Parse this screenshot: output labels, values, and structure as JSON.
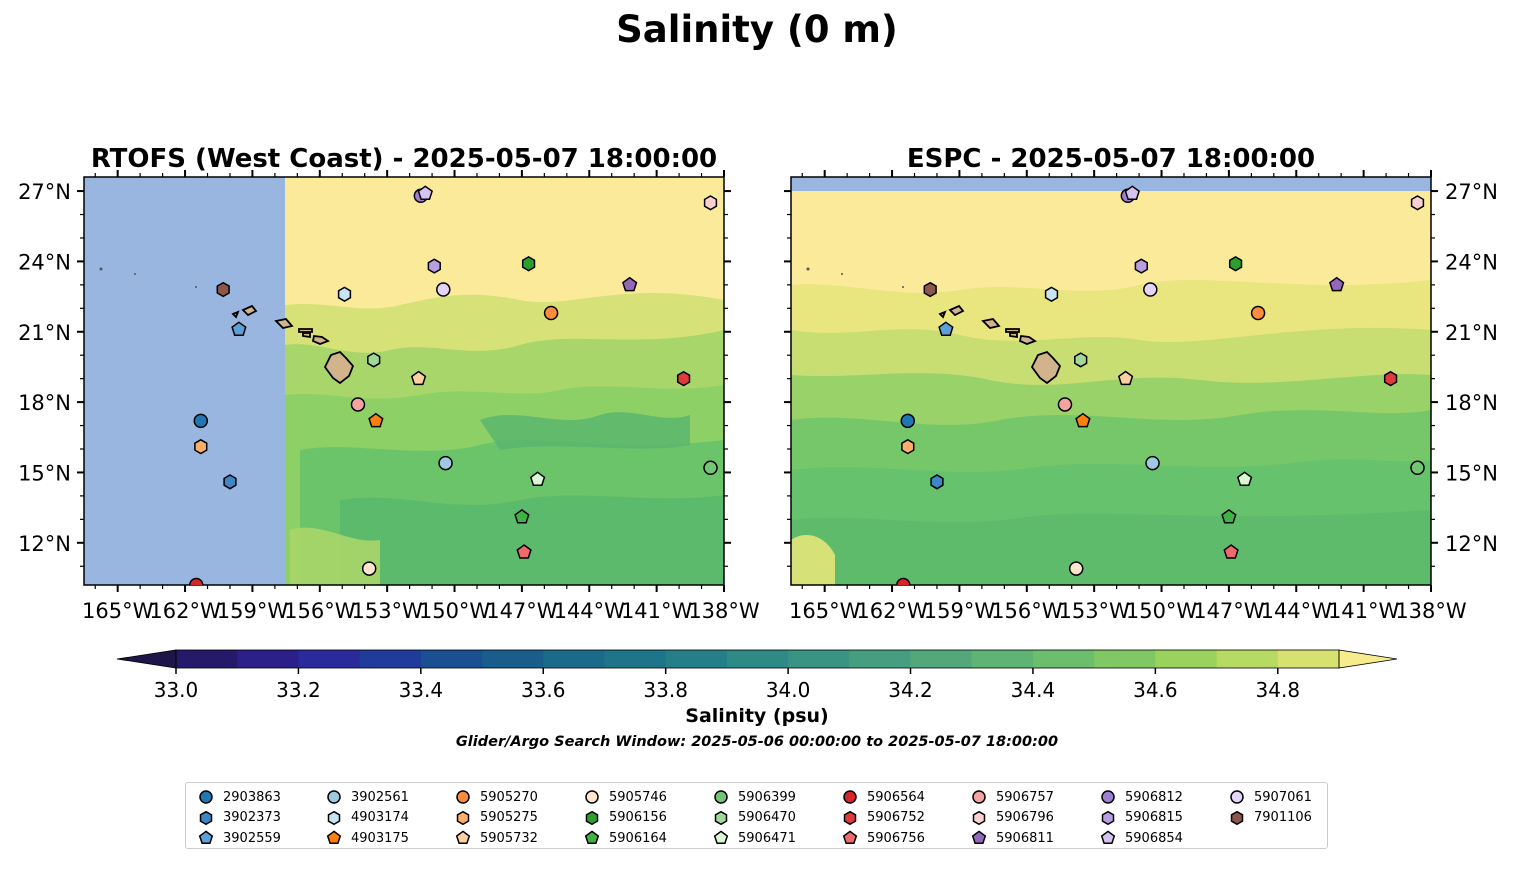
{
  "figure": {
    "suptitle": "Salinity (0 m)",
    "colorbar_label": "Salinity (psu)",
    "search_window": "Glider/Argo Search Window: 2025-05-06 00:00:00 to 2025-05-07 18:00:00",
    "colorbar_ticks": [
      "33.0",
      "33.2",
      "33.4",
      "33.6",
      "33.8",
      "34.0",
      "34.2",
      "34.4",
      "34.6",
      "34.8"
    ],
    "colorbar_range": [
      33.0,
      34.9
    ],
    "colorbar_step": 0.1,
    "colors": {
      "ocean_nodata": "#98b6e0",
      "land": "#d2b48c",
      "high_salinity": "#fbea9a",
      "mid_salinity": "#6cc46a"
    }
  },
  "panels": [
    {
      "title": "RTOFS (West Coast) - 2025-05-07 18:00:00",
      "lat_labels": [
        "27°N",
        "24°N",
        "21°N",
        "18°N",
        "15°N",
        "12°N"
      ],
      "lon_labels": [
        "165°W",
        "162°W",
        "159°W",
        "156°W",
        "153°W",
        "150°W",
        "147°W",
        "144°W",
        "141°W",
        "138°W"
      ],
      "extent": {
        "lon": [
          -166.5,
          -138
        ],
        "lat": [
          10.2,
          27.6
        ]
      },
      "nodata_west_of_lon": -157.5
    },
    {
      "title": "ESPC - 2025-05-07 18:00:00",
      "lat_labels": [
        "27°N",
        "24°N",
        "21°N",
        "18°N",
        "15°N",
        "12°N"
      ],
      "lon_labels": [
        "165°W",
        "162°W",
        "159°W",
        "156°W",
        "153°W",
        "150°W",
        "147°W",
        "144°W",
        "141°W",
        "138°W"
      ],
      "extent": {
        "lon": [
          -166.5,
          -138
        ],
        "lat": [
          10.2,
          27.6
        ]
      },
      "nodata_north_of_lat": 27.0
    }
  ],
  "floats": [
    {
      "id": "2903863",
      "marker": "circle",
      "color": "#1f77b4",
      "lon": -161.3,
      "lat": 17.2
    },
    {
      "id": "3902373",
      "marker": "hexagon",
      "color": "#3d87c4",
      "lon": -160.0,
      "lat": 14.6
    },
    {
      "id": "3902559",
      "marker": "pentagon",
      "color": "#5ba0d8",
      "lon": -159.6,
      "lat": 21.1
    },
    {
      "id": "3902561",
      "marker": "circle",
      "color": "#9ecae1",
      "lon": -150.4,
      "lat": 15.4
    },
    {
      "id": "4903174",
      "marker": "hexagon",
      "color": "#c6e4f2",
      "lon": -154.9,
      "lat": 22.6
    },
    {
      "id": "4903175",
      "marker": "pentagon",
      "color": "#ff7f0e",
      "lon": -153.5,
      "lat": 17.2
    },
    {
      "id": "5905270",
      "marker": "circle",
      "color": "#fd8d3c",
      "lon": -145.7,
      "lat": 21.8
    },
    {
      "id": "5905275",
      "marker": "hexagon",
      "color": "#fdae6b",
      "lon": -161.3,
      "lat": 16.1
    },
    {
      "id": "5905732",
      "marker": "pentagon",
      "color": "#fdd0a2",
      "lon": -151.6,
      "lat": 19.0
    },
    {
      "id": "5905746",
      "marker": "circle",
      "color": "#fee6ce",
      "lon": -153.8,
      "lat": 10.9
    },
    {
      "id": "5906156",
      "marker": "hexagon",
      "color": "#2ca02c",
      "lon": -146.7,
      "lat": 23.9
    },
    {
      "id": "5906164",
      "marker": "pentagon",
      "color": "#41b342",
      "lon": -147.0,
      "lat": 13.1
    },
    {
      "id": "5906399",
      "marker": "circle",
      "color": "#74c476",
      "lon": -138.6,
      "lat": 15.2
    },
    {
      "id": "5906470",
      "marker": "hexagon",
      "color": "#a1d99b",
      "lon": -153.6,
      "lat": 19.8
    },
    {
      "id": "5906471",
      "marker": "pentagon",
      "color": "#d9f7d3",
      "lon": -146.3,
      "lat": 14.7
    },
    {
      "id": "5906564",
      "marker": "circle",
      "color": "#d62728",
      "lon": -161.5,
      "lat": 10.2
    },
    {
      "id": "5906752",
      "marker": "hexagon",
      "color": "#e03b3c",
      "lon": -139.8,
      "lat": 19.0
    },
    {
      "id": "5906756",
      "marker": "pentagon",
      "color": "#ef6b6b",
      "lon": -146.9,
      "lat": 11.6
    },
    {
      "id": "5906757",
      "marker": "circle",
      "color": "#f4a3a3",
      "lon": -154.3,
      "lat": 17.9
    },
    {
      "id": "5906796",
      "marker": "hexagon",
      "color": "#fcd0d0",
      "lon": -138.6,
      "lat": 26.5
    },
    {
      "id": "5906811",
      "marker": "pentagon",
      "color": "#9467bd",
      "lon": -142.2,
      "lat": 23.0
    },
    {
      "id": "5906812",
      "marker": "circle",
      "color": "#9e7fd0",
      "lon": -151.5,
      "lat": 26.8
    },
    {
      "id": "5906815",
      "marker": "hexagon",
      "color": "#b8a0e0",
      "lon": -150.9,
      "lat": 23.8
    },
    {
      "id": "5906854",
      "marker": "pentagon",
      "color": "#d3c2f2",
      "lon": -151.3,
      "lat": 26.9
    },
    {
      "id": "5907061",
      "marker": "circle",
      "color": "#e4d4f7",
      "lon": -150.5,
      "lat": 22.8
    },
    {
      "id": "7901106",
      "marker": "hexagon",
      "color": "#8c564b",
      "lon": -160.3,
      "lat": 22.8
    }
  ]
}
